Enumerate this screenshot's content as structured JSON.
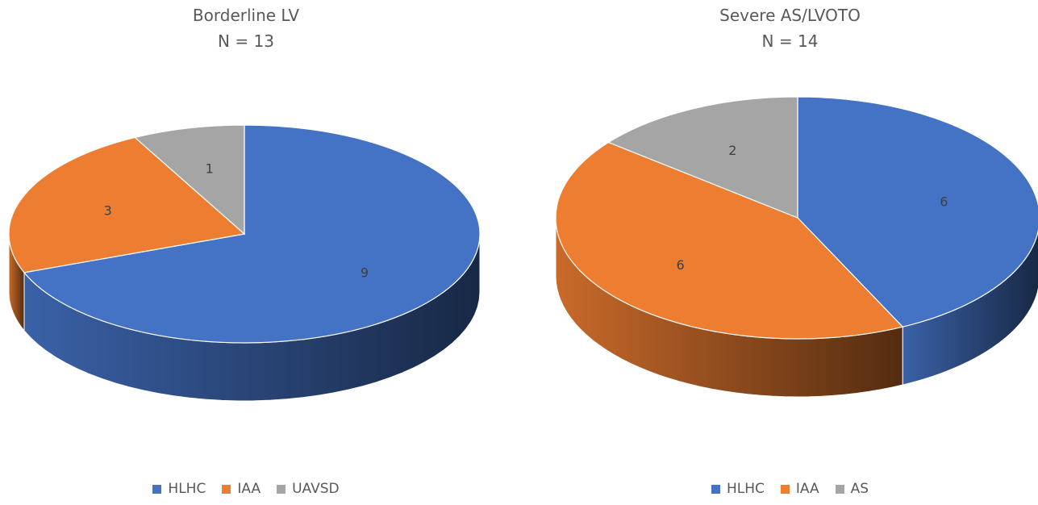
{
  "chart_data": [
    {
      "type": "pie",
      "title": "Borderline LV",
      "subtitle": "N = 13",
      "categories": [
        "HLHC",
        "IAA",
        "UAVSD"
      ],
      "values": [
        9,
        3,
        1
      ],
      "data_labels": [
        "9",
        "3",
        "1"
      ],
      "colors": [
        "#4472C4",
        "#ED7D31",
        "#A5A5A5"
      ],
      "legend": "bottom",
      "style": "3d"
    },
    {
      "type": "pie",
      "title": "Severe AS/LVOTO",
      "subtitle": "N = 14",
      "categories": [
        "HLHC",
        "IAA",
        "AS"
      ],
      "values": [
        6,
        6,
        2
      ],
      "data_labels": [
        "6",
        "6",
        "2"
      ],
      "colors": [
        "#4472C4",
        "#ED7D31",
        "#A5A5A5"
      ],
      "legend": "bottom",
      "style": "3d"
    }
  ]
}
